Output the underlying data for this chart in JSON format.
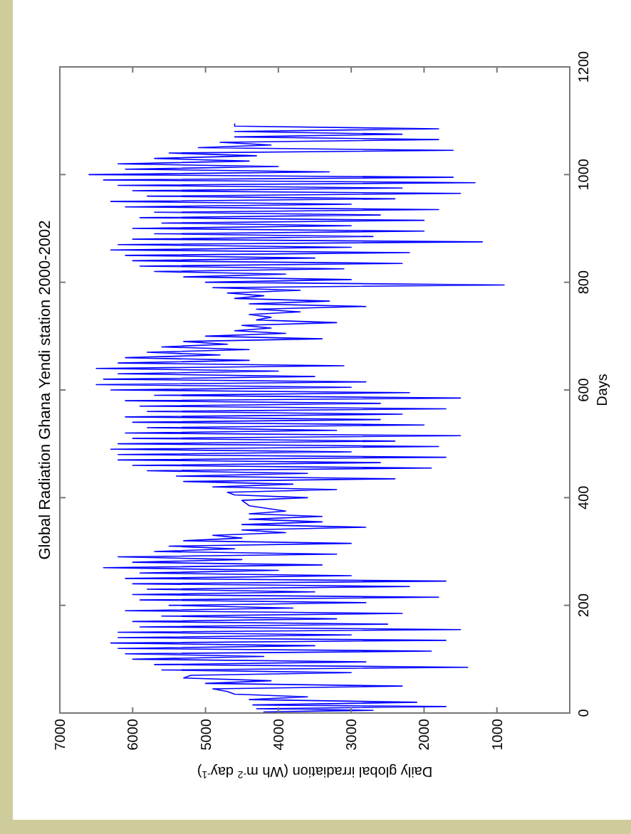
{
  "chart_data": {
    "type": "line",
    "title": "Global Radiation Ghana Yendi station 2000-2002",
    "xlabel": "Daily global irradiation (Wh m$^{-2}$ day$^{-1}$)",
    "ylabel": "Days",
    "xlim": [
      7000,
      0
    ],
    "xticks": [
      7000,
      6000,
      5000,
      4000,
      3000,
      2000,
      1000,
      {
        "value": 0,
        "label": null
      }
    ],
    "ylim": [
      0,
      1200
    ],
    "yticks": [
      0,
      200,
      400,
      600,
      800,
      1000,
      1200
    ],
    "grid": false,
    "marker": "none",
    "line_style": "solid",
    "series": [
      {
        "color": "#0000ff",
        "x": [
          3200,
          4200,
          2700,
          4300,
          1700,
          4350,
          2100,
          4400,
          3600,
          4600,
          4700,
          4900,
          2300,
          5000,
          4100,
          5300,
          5200,
          3000,
          5600,
          1400,
          5700,
          2800,
          6000,
          4200,
          6100,
          1900,
          6200,
          3500,
          6300,
          1700,
          6200,
          3000,
          6200,
          1500,
          5900,
          2500,
          6000,
          3200,
          5600,
          2300,
          6100,
          3800,
          5500,
          2800,
          5900,
          1800,
          6000,
          3500,
          5800,
          2200,
          6000,
          1700,
          6100,
          3000,
          5900,
          4000,
          6400,
          3400,
          6000,
          4500,
          6200,
          3200,
          5700,
          4600,
          5500,
          3000,
          5300,
          4500,
          4900,
          3900,
          4500,
          2800,
          4500,
          3400,
          4400,
          3400,
          4400,
          3900,
          4400,
          4500,
          3600,
          4600,
          4700,
          3200,
          4900,
          3800,
          5300,
          2400,
          5400,
          3600,
          5800,
          1900,
          6000,
          2600,
          6200,
          1700,
          6200,
          3000,
          6300,
          1800,
          6200,
          2400,
          6000,
          1500,
          6100,
          3200,
          5800,
          2000,
          6000,
          2600,
          6100,
          2300,
          5800,
          1700,
          5900,
          2600,
          6100,
          1500,
          5700,
          2200,
          6300,
          3000,
          6500,
          2800,
          6400,
          3500,
          6200,
          4000,
          6500,
          3100,
          6200,
          4400,
          6100,
          4800,
          5800,
          4400,
          5600,
          4700,
          5300,
          3400,
          5000,
          3900,
          4600,
          4100,
          4500,
          3200,
          4300,
          4100,
          4400,
          3700,
          4300,
          2800,
          4400,
          3300,
          4600,
          4200,
          4700,
          3700,
          4900,
          900,
          5000,
          3000,
          5300,
          3900,
          5700,
          3100,
          5900,
          2300,
          6000,
          3500,
          6100,
          2200,
          6300,
          3000,
          6200,
          1200,
          6000,
          2700,
          5700,
          2000,
          6000,
          3000,
          5600,
          2000,
          5900,
          2600,
          5700,
          1800,
          6100,
          3000,
          6300,
          2400,
          5800,
          1500,
          6000,
          2300,
          6200,
          1300,
          6400,
          1600,
          6600,
          3300,
          6100,
          4000,
          6200,
          4400,
          5700,
          4300,
          5500,
          1600,
          5100,
          4100,
          4800,
          1800,
          4600,
          2300,
          4600,
          1800,
          4600,
          4600
        ],
        "values": [
          0,
          2,
          5,
          8,
          12,
          15,
          20,
          25,
          30,
          35,
          40,
          45,
          50,
          55,
          60,
          65,
          70,
          75,
          80,
          85,
          90,
          95,
          100,
          105,
          110,
          115,
          120,
          125,
          130,
          135,
          140,
          145,
          150,
          155,
          160,
          165,
          170,
          175,
          180,
          185,
          190,
          195,
          200,
          205,
          210,
          215,
          220,
          225,
          230,
          235,
          240,
          245,
          250,
          255,
          260,
          265,
          270,
          275,
          280,
          285,
          290,
          295,
          300,
          305,
          310,
          315,
          320,
          325,
          330,
          335,
          340,
          345,
          350,
          355,
          360,
          365,
          370,
          375,
          385,
          395,
          400,
          405,
          410,
          415,
          420,
          425,
          430,
          435,
          440,
          445,
          450,
          455,
          460,
          465,
          470,
          475,
          480,
          485,
          490,
          495,
          500,
          505,
          510,
          515,
          520,
          525,
          530,
          535,
          540,
          545,
          550,
          555,
          560,
          565,
          570,
          575,
          580,
          585,
          590,
          595,
          600,
          605,
          610,
          615,
          620,
          625,
          630,
          635,
          640,
          645,
          650,
          655,
          660,
          665,
          670,
          675,
          680,
          685,
          690,
          695,
          700,
          705,
          710,
          715,
          720,
          725,
          730,
          735,
          740,
          745,
          750,
          755,
          760,
          765,
          770,
          775,
          780,
          785,
          790,
          795,
          800,
          805,
          810,
          815,
          820,
          825,
          830,
          835,
          840,
          845,
          850,
          855,
          860,
          865,
          870,
          875,
          880,
          885,
          890,
          895,
          900,
          905,
          910,
          915,
          920,
          925,
          930,
          935,
          940,
          945,
          950,
          955,
          960,
          965,
          970,
          975,
          980,
          985,
          990,
          995,
          1000,
          1005,
          1010,
          1015,
          1020,
          1025,
          1030,
          1035,
          1040,
          1045,
          1050,
          1055,
          1060,
          1065,
          1070,
          1075,
          1080,
          1085,
          1090,
          1095
        ]
      }
    ]
  }
}
